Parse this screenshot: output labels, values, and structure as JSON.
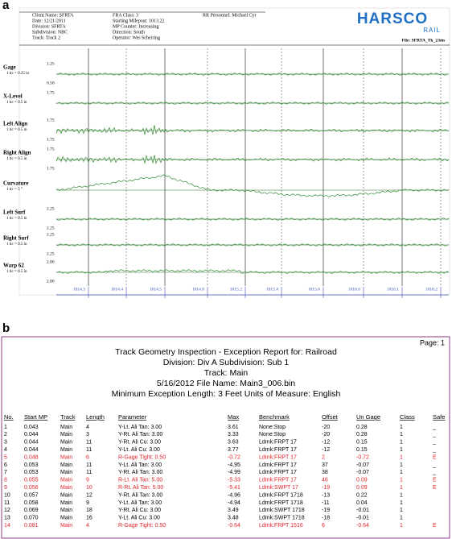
{
  "panel_a": {
    "label": "a",
    "header": {
      "col1": [
        "Client Name: SFRTA",
        "Date: 12/21/2011",
        "Division: SFRTA",
        "Subdivision: NBC",
        "Track: Track 2"
      ],
      "col2": [
        "FRA Class: 3",
        "Starting Milepost: 1013.22",
        "MP Counter: Increasing",
        "Direction: South",
        "Operator: Wes Scheiring"
      ],
      "col3": [
        "RR Personnel: Michael Cyr"
      ],
      "logo": "HARSCO",
      "logo_sub": "RAIL",
      "file": "File: SFRTA_Tk_2.bin"
    },
    "channels": [
      {
        "name": "Gage",
        "scale": "1 tic = 0.25 in",
        "labels": [
          "1.25",
          "0.50"
        ]
      },
      {
        "name": "X-Level",
        "scale": "1 tic = 0.5 in",
        "labels": [
          "1.75"
        ]
      },
      {
        "name": "Left Align",
        "scale": "1 tic = 0.5 in",
        "labels": [
          "1.75",
          "1.75"
        ]
      },
      {
        "name": "Right Align",
        "scale": "1 tic = 0.5 in",
        "labels": [
          "1.75",
          "1.75"
        ]
      },
      {
        "name": "Curvature",
        "scale": "1 tic = 5 °"
      },
      {
        "name": "Left Surf",
        "scale": "1 tic = 0.5 in",
        "labels": [
          "2.25",
          "2.25"
        ]
      },
      {
        "name": "Right Surf",
        "scale": "1 tic = 0.5 in",
        "labels": [
          "2.25",
          "2.25"
        ]
      },
      {
        "name": "Warp 62",
        "scale": "1 tic = 0.5 in",
        "labels": [
          "2.00",
          "2.00"
        ]
      }
    ],
    "mileposts": [
      "1014.3",
      "1014.4",
      "1014.5",
      "1014.8",
      "1015.2",
      "1015.4",
      "1015.6",
      "1016.0",
      "1016.1",
      "1016.2"
    ]
  },
  "panel_b": {
    "label": "b",
    "page": "Page: 1",
    "title_lines": [
      "Track Geometry Inspection - Exception Report for: Railroad",
      "Division: Div A  Subdivision: Sub 1",
      "Track: Main",
      "5/16/2012  File Name: Main3_006.bin",
      "Minimum Exception Length: 3 Feet  Units of Measure:  English"
    ],
    "columns": [
      "No.",
      "Start MP",
      "Track",
      "Length",
      "Parameter",
      "Max",
      "Benchmark",
      "Offset",
      "Un Gage",
      "Class",
      "Safe"
    ],
    "rows": [
      {
        "cells": [
          "1",
          "0.043",
          "Main",
          "4",
          "Y-Lt. Ali Tan: 3.00",
          "3.61",
          "None:Stop",
          "-20",
          "0.28",
          "1",
          "_"
        ]
      },
      {
        "cells": [
          "2",
          "0.044",
          "Main",
          "3",
          "Y-Rt. Ali Tan: 3.00",
          "3.33",
          "None:Stop",
          "-20",
          "0.28",
          "1",
          "_"
        ]
      },
      {
        "cells": [
          "3",
          "0.044",
          "Main",
          "11",
          "Y-Rt. Ali Cu: 3.00",
          "3.63",
          "Ldmk:FRPT 17",
          "-12",
          "0.15",
          "1",
          "_"
        ]
      },
      {
        "cells": [
          "4",
          "0.044",
          "Main",
          "11",
          "Y-Lt. Ali Cu: 3.00",
          "3.77",
          "Ldmk:FRPT 17",
          "-12",
          "0.15",
          "1",
          "_"
        ]
      },
      {
        "cells": [
          "5",
          "0.048",
          "Main",
          "6",
          "R-Gage Tight: 0.50",
          "-0.72",
          "Ldmk:FRPT 17",
          "2",
          "-0.72",
          "1",
          "E"
        ],
        "color": "#e0242c"
      },
      {
        "cells": [
          "6",
          "0.053",
          "Main",
          "11",
          "Y-Lt. Ali Tan: 3.00",
          "-4.95",
          "Ldmk:FRPT 17",
          "37",
          "-0.07",
          "1",
          "_"
        ]
      },
      {
        "cells": [
          "7",
          "0.053",
          "Main",
          "11",
          "Y-Rt. Ali Tan: 3.00",
          "-4.99",
          "Ldmk:FRPT 17",
          "38",
          "-0.07",
          "1",
          "_"
        ]
      },
      {
        "cells": [
          "8",
          "0.055",
          "Main",
          "9",
          "R-Lt. Ali Tan: 5.00",
          "-5.33",
          "Ldmk:FRPT 17",
          "46",
          "0.09",
          "1",
          "E"
        ],
        "color": "#e0242c"
      },
      {
        "cells": [
          "9",
          "0.056",
          "Main",
          "10",
          "R-Rt. Ali Tan: 5.00",
          "-5.41",
          "Ldmk:SWPT 17",
          "-19",
          "0.09",
          "1",
          "E"
        ],
        "color": "#e0242c"
      },
      {
        "cells": [
          "10",
          "0.057",
          "Main",
          "12",
          "Y-Rt. Ali Tan: 3.00",
          "-4.96",
          "Ldmk:FRPT 1718",
          "-13",
          "0.22",
          "1"
        ]
      },
      {
        "cells": [
          "11",
          "0.058",
          "Main",
          "9",
          "Y-Lt. Ali Tan: 3.00",
          "-4.94",
          "Ldmk:FRPT 1718",
          "-11",
          "0.04",
          "1"
        ]
      },
      {
        "cells": [
          "12",
          "0.069",
          "Main",
          "18",
          "Y-Rt. Ali Cu: 3.00",
          "3.49",
          "Ldmk:SWPT 1718",
          "-19",
          "-0.01",
          "1"
        ]
      },
      {
        "cells": [
          "13",
          "0.070",
          "Main",
          "16",
          "Y-Lt. Ali Cu: 3.00",
          "3.48",
          "Ldmk:SWPT 1718",
          "-18",
          "-0.01",
          "1"
        ]
      },
      {
        "cells": [
          "14",
          "0.081",
          "Main",
          "4",
          "R-Gage Tight: 0.50",
          "-0.64",
          "Ldmk:FRPT 1516",
          "6",
          "-0.64",
          "1",
          "E"
        ],
        "color": "#e0242c"
      }
    ]
  }
}
